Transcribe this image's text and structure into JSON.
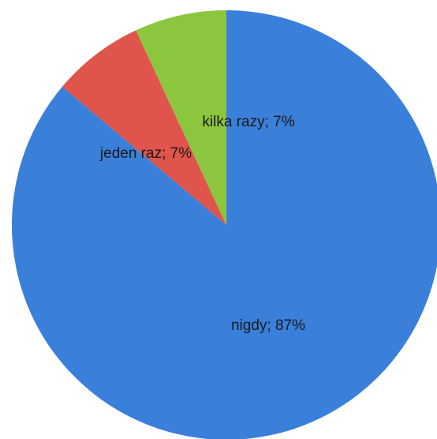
{
  "chart_data": {
    "type": "pie",
    "title": "",
    "series": [
      {
        "values": [
          87,
          7,
          7
        ]
      }
    ],
    "categories": [
      "nigdy",
      "jeden raz",
      "kilka razy"
    ],
    "values": [
      87,
      7,
      7
    ],
    "data_labels": [
      "nigdy; 87%",
      "jeden raz; 7%",
      "kilka razy; 7%"
    ],
    "colors": [
      "#3a7fd9",
      "#e0554b",
      "#8cc63f"
    ],
    "start": "12 o'clock",
    "direction": "clockwise",
    "legend": "none"
  }
}
